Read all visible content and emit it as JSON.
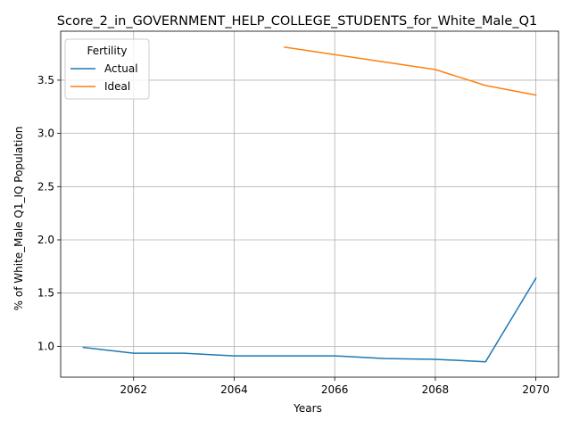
{
  "chart_data": {
    "type": "line",
    "title": "Score_2_in_GOVERNMENT_HELP_COLLEGE_STUDENTS_for_White_Male_Q1",
    "xlabel": "Years",
    "ylabel": "% of White_Male Q1_IQ Population",
    "xlim": [
      2060.55,
      2070.45
    ],
    "ylim": [
      0.71,
      3.96
    ],
    "xticks": [
      2062,
      2064,
      2066,
      2068,
      2070
    ],
    "yticks": [
      1.0,
      1.5,
      2.0,
      2.5,
      3.0,
      3.5
    ],
    "grid": true,
    "legend": {
      "title": "Fertility",
      "position": "top-left"
    },
    "series": [
      {
        "name": "Actual",
        "color": "#1f77b4",
        "x": [
          2061,
          2062,
          2063,
          2064,
          2065,
          2066,
          2067,
          2068,
          2069,
          2070
        ],
        "y": [
          0.99,
          0.935,
          0.935,
          0.91,
          0.91,
          0.91,
          0.885,
          0.878,
          0.855,
          1.64
        ]
      },
      {
        "name": "Ideal",
        "color": "#ff7f0e",
        "x": [
          2065,
          2066,
          2067,
          2068,
          2069,
          2070
        ],
        "y": [
          3.81,
          3.74,
          3.67,
          3.6,
          3.45,
          3.36
        ]
      }
    ]
  }
}
